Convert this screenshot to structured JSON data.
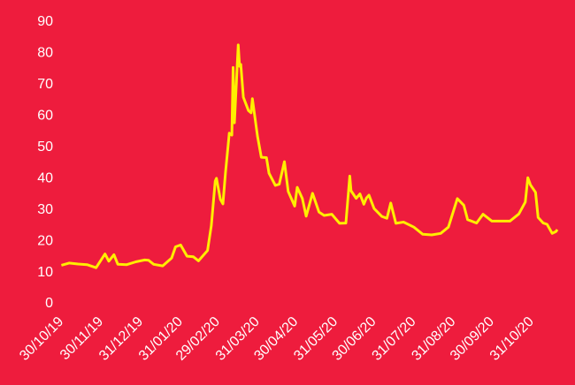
{
  "chart_data": {
    "type": "line",
    "x": [
      "2019-10-30",
      "2019-11-05",
      "2019-11-12",
      "2019-11-19",
      "2019-11-26",
      "2019-12-03",
      "2019-12-06",
      "2019-12-10",
      "2019-12-13",
      "2019-12-20",
      "2019-12-27",
      "2020-01-03",
      "2020-01-06",
      "2020-01-10",
      "2020-01-17",
      "2020-01-24",
      "2020-01-27",
      "2020-01-31",
      "2020-02-05",
      "2020-02-10",
      "2020-02-14",
      "2020-02-21",
      "2020-02-24",
      "2020-02-27",
      "2020-02-28",
      "2020-03-02",
      "2020-03-04",
      "2020-03-06",
      "2020-03-09",
      "2020-03-11",
      "2020-03-12",
      "2020-03-13",
      "2020-03-16",
      "2020-03-17",
      "2020-03-18",
      "2020-03-20",
      "2020-03-24",
      "2020-03-26",
      "2020-03-27",
      "2020-03-31",
      "2020-04-03",
      "2020-04-07",
      "2020-04-09",
      "2020-04-14",
      "2020-04-17",
      "2020-04-21",
      "2020-04-24",
      "2020-04-29",
      "2020-05-01",
      "2020-05-05",
      "2020-05-08",
      "2020-05-13",
      "2020-05-18",
      "2020-05-22",
      "2020-05-28",
      "2020-06-03",
      "2020-06-08",
      "2020-06-11",
      "2020-06-12",
      "2020-06-16",
      "2020-06-19",
      "2020-06-22",
      "2020-06-24",
      "2020-06-26",
      "2020-06-30",
      "2020-07-06",
      "2020-07-10",
      "2020-07-13",
      "2020-07-17",
      "2020-07-23",
      "2020-07-31",
      "2020-08-07",
      "2020-08-14",
      "2020-08-21",
      "2020-08-27",
      "2020-09-03",
      "2020-09-08",
      "2020-09-11",
      "2020-09-18",
      "2020-09-23",
      "2020-09-30",
      "2020-10-07",
      "2020-10-14",
      "2020-10-21",
      "2020-10-26",
      "2020-10-28",
      "2020-10-30",
      "2020-11-03",
      "2020-11-05",
      "2020-11-09",
      "2020-11-12",
      "2020-11-16",
      "2020-11-19",
      "2020-11-20"
    ],
    "series": [
      {
        "color": "#ffee00",
        "values": [
          12.3,
          13,
          12.7,
          12.5,
          11.5,
          15.9,
          13.6,
          15.7,
          12.6,
          12.5,
          13.4,
          14,
          13.9,
          12.6,
          12.1,
          14.6,
          18.2,
          18.8,
          15.2,
          15,
          13.7,
          17,
          25,
          39.2,
          40.1,
          33.4,
          31.9,
          41.9,
          54.5,
          53.9,
          75.5,
          57.8,
          82.7,
          75.9,
          76.5,
          66,
          61.7,
          61,
          65.5,
          53.5,
          46.8,
          46.7,
          41.7,
          37.8,
          38.2,
          45.4,
          35.9,
          31.2,
          37.2,
          33.6,
          28,
          35.3,
          29.3,
          28.2,
          28.6,
          25.7,
          25.8,
          40.8,
          36.1,
          33.7,
          35.1,
          31.8,
          33.8,
          34.7,
          30.4,
          27.9,
          27.3,
          32.2,
          25.7,
          26.1,
          24.5,
          22.2,
          22,
          22.5,
          24.5,
          33.6,
          31.5,
          26.9,
          25.8,
          28.6,
          26.4,
          26.4,
          26.4,
          28.7,
          32.5,
          40.3,
          38,
          35.6,
          27.6,
          25.8,
          25.4,
          22.5,
          23.1,
          23.7
        ]
      }
    ],
    "xlim": [
      "2019-10-29",
      "2020-11-20"
    ],
    "xticks": [
      {
        "value": "2019-10-30",
        "label": "30/10/19"
      },
      {
        "value": "2019-11-30",
        "label": "30/11/19"
      },
      {
        "value": "2019-12-31",
        "label": "31/12/19"
      },
      {
        "value": "2020-01-31",
        "label": "31/01/20"
      },
      {
        "value": "2020-02-29",
        "label": "29/02/20"
      },
      {
        "value": "2020-03-31",
        "label": "31/03/20"
      },
      {
        "value": "2020-04-30",
        "label": "30/04/20"
      },
      {
        "value": "2020-05-31",
        "label": "31/05/20"
      },
      {
        "value": "2020-06-30",
        "label": "30/06/20"
      },
      {
        "value": "2020-07-31",
        "label": "31/07/20"
      },
      {
        "value": "2020-08-31",
        "label": "31/08/20"
      },
      {
        "value": "2020-09-30",
        "label": "30/09/20"
      },
      {
        "value": "2020-10-31",
        "label": "31/10/20"
      }
    ],
    "ylim": [
      0,
      90
    ],
    "yticks": [
      0,
      10,
      20,
      30,
      40,
      50,
      60,
      70,
      80,
      90
    ]
  }
}
